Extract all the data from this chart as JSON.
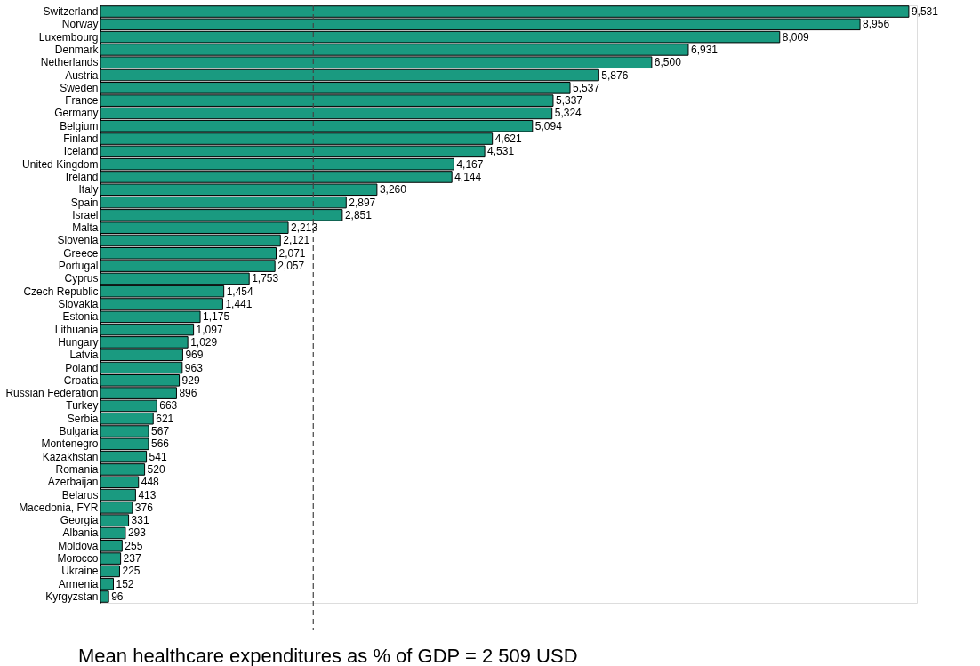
{
  "chart_data": {
    "type": "bar",
    "orientation": "horizontal",
    "legend": false,
    "categories": [
      "Switzerland",
      "Norway",
      "Luxembourg",
      "Denmark",
      "Netherlands",
      "Austria",
      "Sweden",
      "France",
      "Germany",
      "Belgium",
      "Finland",
      "Iceland",
      "United Kingdom",
      "Ireland",
      "Italy",
      "Spain",
      "Israel",
      "Malta",
      "Slovenia",
      "Greece",
      "Portugal",
      "Cyprus",
      "Czech Republic",
      "Slovakia",
      "Estonia",
      "Lithuania",
      "Hungary",
      "Latvia",
      "Poland",
      "Croatia",
      "Russian Federation",
      "Turkey",
      "Serbia",
      "Bulgaria",
      "Montenegro",
      "Kazakhstan",
      "Romania",
      "Azerbaijan",
      "Belarus",
      "Macedonia, FYR",
      "Georgia",
      "Albania",
      "Moldova",
      "Morocco",
      "Ukraine",
      "Armenia",
      "Kyrgyzstan"
    ],
    "series": [
      {
        "color": "#1a9a80",
        "values": [
          9531,
          8956,
          8009,
          6931,
          6500,
          5876,
          5537,
          5337,
          5324,
          5094,
          4621,
          4531,
          4167,
          4144,
          3260,
          2897,
          2851,
          2213,
          2121,
          2071,
          2057,
          1753,
          1454,
          1441,
          1175,
          1097,
          1029,
          969,
          963,
          929,
          896,
          663,
          621,
          567,
          566,
          541,
          520,
          448,
          413,
          376,
          331,
          293,
          255,
          237,
          225,
          152,
          96
        ],
        "value_labels": [
          "9,531",
          "8,956",
          "8,009",
          "6,931",
          "6,500",
          "5,876",
          "5,537",
          "5,337",
          "5,324",
          "5,094",
          "4,621",
          "4,531",
          "4,167",
          "4,144",
          "3,260",
          "2,897",
          "2,851",
          "2,213",
          "2,121",
          "2,071",
          "2,057",
          "1,753",
          "1,454",
          "1,441",
          "1,175",
          "1,097",
          "1,029",
          "969",
          "963",
          "929",
          "896",
          "663",
          "621",
          "567",
          "566",
          "541",
          "520",
          "448",
          "413",
          "376",
          "331",
          "293",
          "255",
          "237",
          "225",
          "152",
          "96"
        ]
      }
    ],
    "ref_lines": [
      {
        "axis": "x",
        "value": 2509,
        "label": "Mean healthcare expenditures as % of GDP = 2 509 USD",
        "color": "#444444",
        "line_style": "dashed"
      }
    ]
  }
}
